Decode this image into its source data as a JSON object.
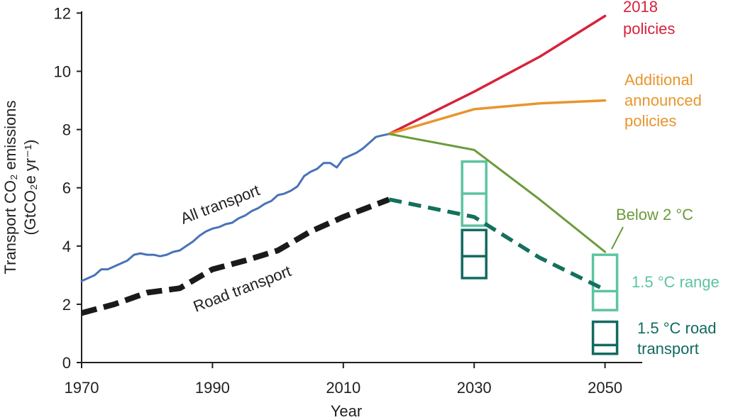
{
  "chart_data": {
    "type": "line",
    "xlabel": "Year",
    "ylabel_line1": "Transport CO₂ emissions",
    "ylabel_line2": "(GtCO₂e yr⁻¹)",
    "xlim": [
      1970,
      2052
    ],
    "ylim": [
      0,
      12
    ],
    "x_ticks": [
      "1970",
      "1990",
      "2010",
      "2030",
      "2050"
    ],
    "y_ticks": [
      "0",
      "2",
      "4",
      "6",
      "8",
      "10",
      "12"
    ],
    "grid": false,
    "colors": {
      "all_transport": "#4a72b8",
      "road_transport": "#1a1a1a",
      "policies_2018": "#d9213a",
      "additional_policies": "#e8952e",
      "below_2c": "#6a9a3c",
      "road_projection": "#14705c",
      "range_15c": "#5cc4a0",
      "road_15c": "#126a60",
      "axis": "#231f20"
    },
    "labels": {
      "all_transport": "All transport",
      "road_transport": "Road transport",
      "policies_2018_line1": "2018",
      "policies_2018_line2": "policies",
      "additional_line1": "Additional",
      "additional_line2": "announced",
      "additional_line3": "policies",
      "below_2c": "Below 2 °C",
      "range_15c": "1.5 °C range",
      "road_15c_line1": "1.5 °C road",
      "road_15c_line2": "transport"
    },
    "series": [
      {
        "key": "all_transport",
        "x": [
          1970,
          1971,
          1972,
          1973,
          1974,
          1975,
          1976,
          1977,
          1978,
          1979,
          1980,
          1981,
          1982,
          1983,
          1984,
          1985,
          1986,
          1987,
          1988,
          1989,
          1990,
          1991,
          1992,
          1993,
          1994,
          1995,
          1996,
          1997,
          1998,
          1999,
          2000,
          2001,
          2002,
          2003,
          2004,
          2005,
          2006,
          2007,
          2008,
          2009,
          2010,
          2011,
          2012,
          2013,
          2014,
          2015,
          2016,
          2017
        ],
        "y": [
          2.8,
          2.9,
          3.0,
          3.2,
          3.2,
          3.3,
          3.4,
          3.5,
          3.7,
          3.75,
          3.7,
          3.7,
          3.65,
          3.7,
          3.8,
          3.85,
          4.0,
          4.15,
          4.35,
          4.5,
          4.6,
          4.65,
          4.75,
          4.8,
          4.95,
          5.05,
          5.2,
          5.3,
          5.45,
          5.55,
          5.75,
          5.8,
          5.9,
          6.05,
          6.4,
          6.55,
          6.65,
          6.85,
          6.85,
          6.7,
          7.0,
          7.1,
          7.2,
          7.35,
          7.55,
          7.75,
          7.8,
          7.85
        ]
      },
      {
        "key": "road_transport",
        "x": [
          1970,
          1975,
          1980,
          1985,
          1990,
          1995,
          2000,
          2005,
          2010,
          2017
        ],
        "y": [
          1.7,
          2.0,
          2.4,
          2.55,
          3.2,
          3.5,
          3.85,
          4.5,
          5.0,
          5.6
        ]
      },
      {
        "key": "policies_2018",
        "x": [
          2017,
          2030,
          2040,
          2050
        ],
        "y": [
          7.85,
          9.3,
          10.5,
          11.9
        ]
      },
      {
        "key": "additional_policies",
        "x": [
          2017,
          2030,
          2040,
          2050
        ],
        "y": [
          7.85,
          8.7,
          8.9,
          9.0
        ]
      },
      {
        "key": "below_2c",
        "x": [
          2017,
          2030,
          2040,
          2050
        ],
        "y": [
          7.85,
          7.3,
          5.6,
          3.8
        ]
      },
      {
        "key": "road_projection",
        "x": [
          2017,
          2030,
          2040,
          2050
        ],
        "y": [
          5.6,
          5.0,
          3.6,
          2.5
        ]
      }
    ],
    "boxes": [
      {
        "key": "range_15c",
        "x": 2030,
        "low": 4.7,
        "mid": 5.8,
        "high": 6.9
      },
      {
        "key": "range_15c",
        "x": 2050,
        "low": 1.8,
        "mid": 2.45,
        "high": 3.7
      },
      {
        "key": "road_15c",
        "x": 2030,
        "low": 2.9,
        "mid": 3.65,
        "high": 4.55
      },
      {
        "key": "road_15c",
        "x": 2050,
        "low": 0.3,
        "mid": 0.6,
        "high": 1.4
      }
    ]
  }
}
